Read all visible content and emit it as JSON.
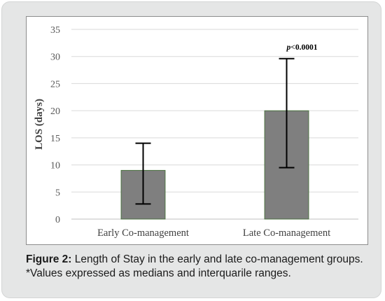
{
  "chart_data": {
    "type": "bar",
    "categories": [
      "Early Co-management",
      "Late Co-management"
    ],
    "series": [
      {
        "values": [
          9,
          20
        ],
        "error_low": [
          2.8,
          9.5
        ],
        "error_high": [
          14,
          29.6
        ]
      }
    ],
    "ylabel": "LOS (days)",
    "xlabel": "",
    "ylim": [
      0,
      35
    ],
    "yticks": [
      0,
      5,
      10,
      15,
      20,
      25,
      30,
      35
    ],
    "grid": true,
    "annotation": "p<0.0001",
    "bar_color": "#7f7f7f",
    "bar_edge_color": "#3a6b2c"
  },
  "caption": {
    "label": "Figure 2:",
    "text": " Length of Stay in the early and late co-management groups.",
    "note": "*Values expressed as medians and interquarile ranges."
  }
}
